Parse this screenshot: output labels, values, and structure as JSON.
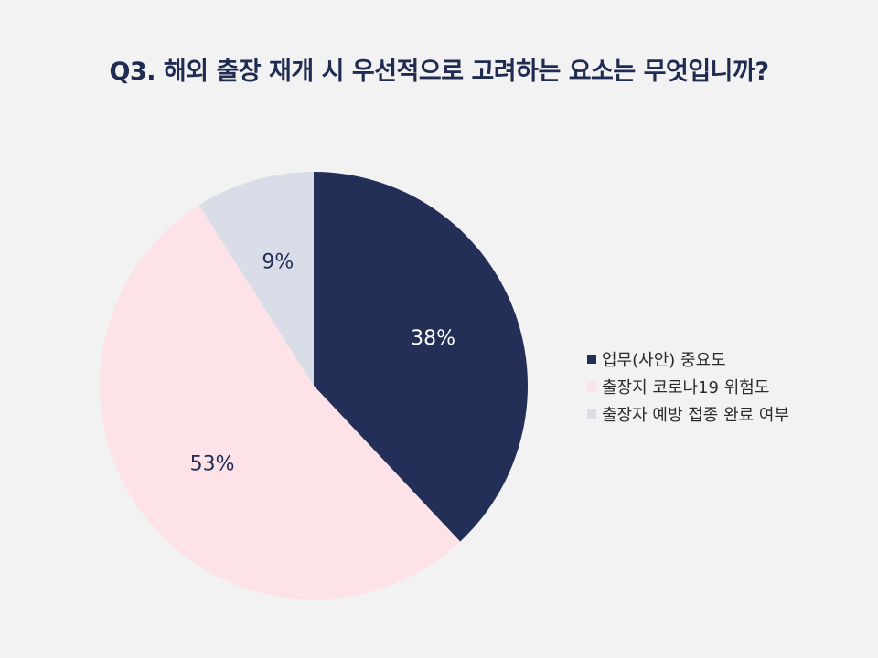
{
  "chart_data": {
    "type": "pie",
    "title": "Q3. 해외 출장 재개 시 우선적으로 고려하는 요소는 무엇입니까?",
    "slices": [
      {
        "label": "업무(사안) 중요도",
        "value": 38,
        "value_label": "38%",
        "color": "#232f56",
        "text_color": "#ffffff"
      },
      {
        "label": "출장지 코로나19 위험도",
        "value": 53,
        "value_label": "53%",
        "color": "#fde3e8",
        "text_color": "#232f56"
      },
      {
        "label": "출장자 예방 접종 완료 여부",
        "value": 9,
        "value_label": "9%",
        "color": "#d8dde7",
        "text_color": "#232f56"
      }
    ],
    "start": "12 o'clock",
    "direction": "clockwise",
    "legend_position": "right"
  }
}
